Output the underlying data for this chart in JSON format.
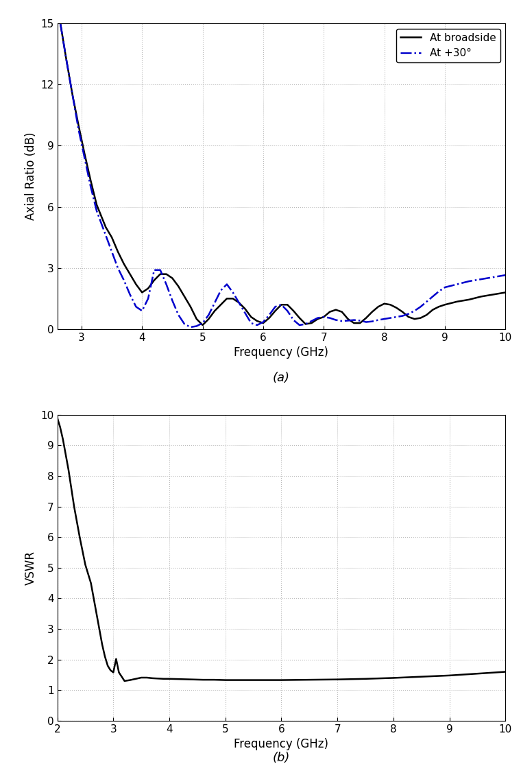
{
  "plot_a": {
    "title": "(a)",
    "xlabel": "Frequency (GHz)",
    "ylabel": "Axial Ratio (dB)",
    "xlim": [
      2.6,
      10.0
    ],
    "ylim": [
      0,
      15
    ],
    "yticks": [
      0,
      3,
      6,
      9,
      12,
      15
    ],
    "xticks": [
      3,
      4,
      5,
      6,
      7,
      8,
      9,
      10
    ],
    "broadside_freq": [
      2.65,
      2.75,
      2.85,
      2.95,
      3.05,
      3.15,
      3.25,
      3.4,
      3.5,
      3.6,
      3.7,
      3.8,
      3.9,
      4.0,
      4.1,
      4.2,
      4.3,
      4.4,
      4.5,
      4.6,
      4.7,
      4.8,
      4.9,
      5.0,
      5.1,
      5.2,
      5.3,
      5.4,
      5.5,
      5.6,
      5.7,
      5.8,
      5.9,
      6.0,
      6.1,
      6.2,
      6.3,
      6.4,
      6.5,
      6.6,
      6.7,
      6.8,
      6.9,
      7.0,
      7.1,
      7.2,
      7.3,
      7.4,
      7.5,
      7.6,
      7.7,
      7.8,
      7.9,
      8.0,
      8.1,
      8.2,
      8.3,
      8.4,
      8.5,
      8.6,
      8.7,
      8.8,
      8.9,
      9.0,
      9.2,
      9.4,
      9.6,
      9.8,
      10.0
    ],
    "broadside_val": [
      15.0,
      13.2,
      11.5,
      10.0,
      8.6,
      7.3,
      6.1,
      5.0,
      4.5,
      3.8,
      3.2,
      2.7,
      2.2,
      1.8,
      2.0,
      2.4,
      2.7,
      2.7,
      2.5,
      2.1,
      1.6,
      1.1,
      0.5,
      0.2,
      0.5,
      0.9,
      1.2,
      1.5,
      1.5,
      1.3,
      1.0,
      0.6,
      0.4,
      0.3,
      0.55,
      0.9,
      1.2,
      1.2,
      0.9,
      0.55,
      0.25,
      0.3,
      0.5,
      0.6,
      0.85,
      0.95,
      0.85,
      0.5,
      0.3,
      0.3,
      0.55,
      0.85,
      1.1,
      1.25,
      1.2,
      1.05,
      0.85,
      0.6,
      0.5,
      0.55,
      0.7,
      0.95,
      1.1,
      1.2,
      1.35,
      1.45,
      1.6,
      1.7,
      1.8
    ],
    "plus30_freq": [
      2.65,
      2.75,
      2.85,
      2.95,
      3.05,
      3.15,
      3.25,
      3.4,
      3.5,
      3.6,
      3.7,
      3.8,
      3.9,
      4.0,
      4.1,
      4.15,
      4.2,
      4.3,
      4.4,
      4.5,
      4.6,
      4.7,
      4.8,
      4.9,
      5.0,
      5.1,
      5.2,
      5.3,
      5.4,
      5.5,
      5.6,
      5.7,
      5.8,
      5.9,
      6.0,
      6.1,
      6.2,
      6.3,
      6.4,
      6.5,
      6.6,
      6.7,
      6.8,
      6.9,
      7.0,
      7.1,
      7.2,
      7.3,
      7.4,
      7.5,
      7.6,
      7.7,
      7.8,
      7.9,
      8.0,
      8.1,
      8.2,
      8.3,
      8.4,
      8.5,
      8.6,
      8.7,
      8.8,
      8.9,
      9.0,
      9.2,
      9.4,
      9.6,
      9.8,
      10.0
    ],
    "plus30_val": [
      15.0,
      13.2,
      11.5,
      9.8,
      8.4,
      7.0,
      5.8,
      4.6,
      3.8,
      3.0,
      2.4,
      1.7,
      1.1,
      0.9,
      1.5,
      2.2,
      2.9,
      2.9,
      2.2,
      1.4,
      0.7,
      0.25,
      0.1,
      0.15,
      0.3,
      0.7,
      1.3,
      1.9,
      2.2,
      1.8,
      1.3,
      0.8,
      0.3,
      0.2,
      0.35,
      0.7,
      1.1,
      1.2,
      0.9,
      0.45,
      0.2,
      0.25,
      0.4,
      0.55,
      0.6,
      0.55,
      0.45,
      0.4,
      0.42,
      0.45,
      0.42,
      0.35,
      0.38,
      0.45,
      0.5,
      0.55,
      0.6,
      0.65,
      0.75,
      0.9,
      1.1,
      1.35,
      1.6,
      1.85,
      2.05,
      2.2,
      2.35,
      2.45,
      2.55,
      2.65
    ],
    "broadside_color": "#000000",
    "plus30_color": "#0000cc",
    "legend_broadside": "At broadside",
    "legend_plus30": "At +30°"
  },
  "plot_b": {
    "title": "(b)",
    "xlabel": "Frequency (GHz)",
    "ylabel": "VSWR",
    "xlim": [
      2,
      10
    ],
    "ylim": [
      0,
      10
    ],
    "yticks": [
      0,
      1,
      2,
      3,
      4,
      5,
      6,
      7,
      8,
      9,
      10
    ],
    "xticks": [
      2,
      3,
      4,
      5,
      6,
      7,
      8,
      9,
      10
    ],
    "vswr_freq": [
      2.0,
      2.05,
      2.1,
      2.15,
      2.2,
      2.25,
      2.3,
      2.35,
      2.4,
      2.45,
      2.5,
      2.55,
      2.6,
      2.65,
      2.7,
      2.75,
      2.8,
      2.85,
      2.9,
      2.95,
      3.0,
      3.05,
      3.1,
      3.2,
      3.3,
      3.4,
      3.5,
      3.6,
      3.7,
      3.8,
      3.9,
      4.0,
      4.2,
      4.4,
      4.6,
      4.8,
      5.0,
      5.5,
      6.0,
      6.5,
      7.0,
      7.5,
      8.0,
      8.5,
      9.0,
      9.5,
      10.0
    ],
    "vswr_val": [
      9.9,
      9.6,
      9.2,
      8.7,
      8.2,
      7.6,
      7.0,
      6.5,
      6.0,
      5.55,
      5.1,
      4.8,
      4.5,
      4.0,
      3.5,
      3.0,
      2.5,
      2.1,
      1.8,
      1.65,
      1.58,
      2.02,
      1.58,
      1.3,
      1.33,
      1.37,
      1.41,
      1.41,
      1.39,
      1.38,
      1.37,
      1.37,
      1.36,
      1.35,
      1.34,
      1.34,
      1.33,
      1.33,
      1.33,
      1.34,
      1.35,
      1.37,
      1.4,
      1.44,
      1.48,
      1.54,
      1.6
    ],
    "line_color": "#000000"
  },
  "background_color": "#ffffff",
  "grid_color": "#bbbbbb",
  "figure_facecolor": "#ffffff"
}
